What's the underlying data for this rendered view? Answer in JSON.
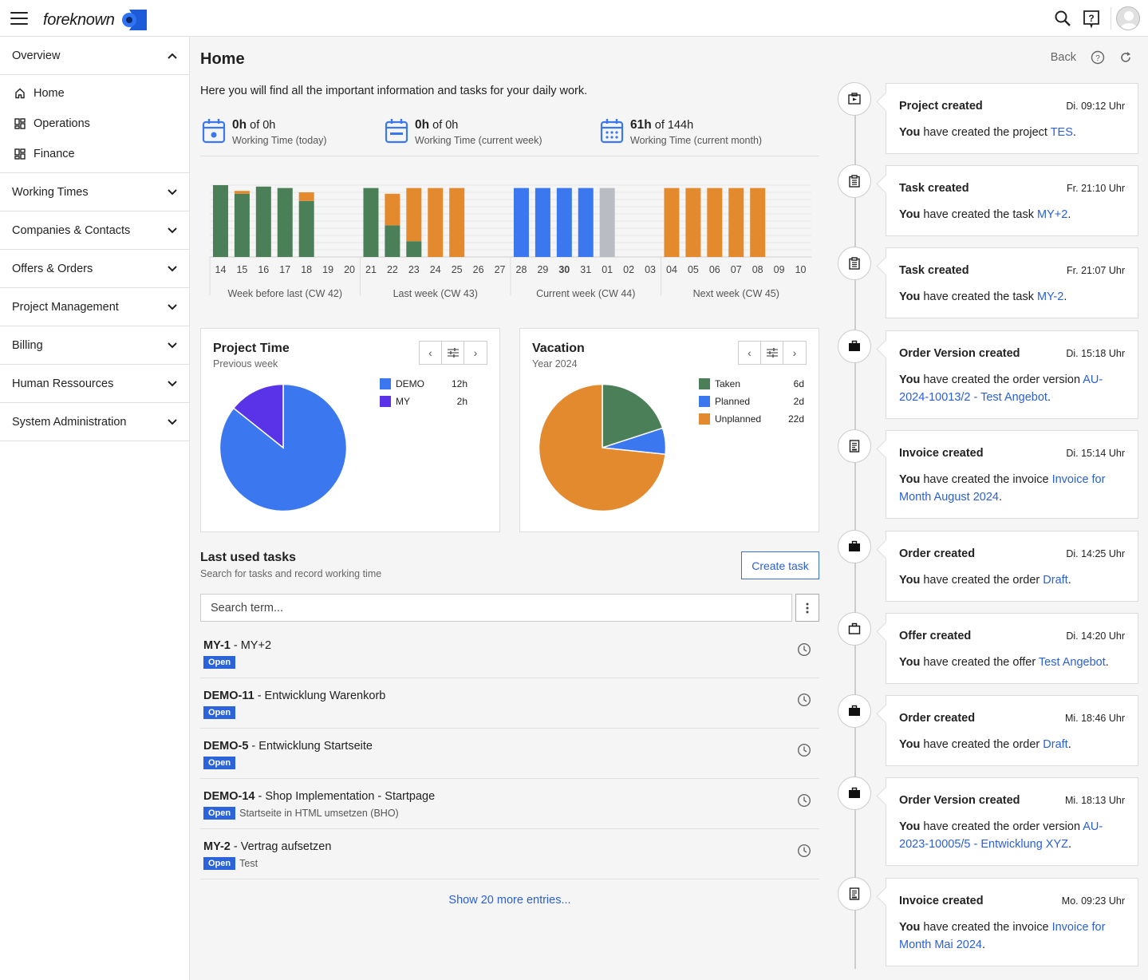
{
  "app": {
    "logo_text": "foreknown"
  },
  "sidebar": {
    "overview": "Overview",
    "sub": [
      "Home",
      "Operations",
      "Finance"
    ],
    "sections": [
      "Working Times",
      "Companies & Contacts",
      "Offers & Orders",
      "Project Management",
      "Billing",
      "Human Ressources",
      "System Administration"
    ]
  },
  "page": {
    "title": "Home",
    "back": "Back",
    "intro": "Here you will find all the important information and tasks for your daily work."
  },
  "stats": [
    {
      "value": "0h",
      "of": "of 0h",
      "label": "Working Time (today)"
    },
    {
      "value": "0h",
      "of": "of 0h",
      "label": "Working Time (current week)"
    },
    {
      "value": "61h",
      "of": "of 144h",
      "label": "Working Time (current month)"
    }
  ],
  "week_chart": {
    "days": [
      "14",
      "15",
      "16",
      "17",
      "18",
      "19",
      "20",
      "21",
      "22",
      "23",
      "24",
      "25",
      "26",
      "27",
      "28",
      "29",
      "30",
      "31",
      "01",
      "02",
      "03",
      "04",
      "05",
      "06",
      "07",
      "08",
      "09",
      "10"
    ],
    "bold_day": "30",
    "weeks": [
      "Week before last (CW 42)",
      "Last week (CW 43)",
      "Current week (CW 44)",
      "Next week (CW 45)"
    ],
    "colors": {
      "worked": "#4a7f57",
      "overtime": "#e38a2f",
      "planned": "#3b78f0",
      "holiday": "#b9bcc2"
    },
    "bars": [
      {
        "worked": 1.0
      },
      {
        "worked": 0.88,
        "overtime": 0.04
      },
      {
        "worked": 0.98
      },
      {
        "worked": 0.96
      },
      {
        "worked": 0.78,
        "overtime": 0.12
      },
      {},
      {},
      {
        "worked": 0.96
      },
      {
        "worked": 0.44,
        "overtime": 0.44
      },
      {
        "worked": 0.22,
        "overtime": 0.74
      },
      {
        "overtime": 0.96
      },
      {
        "overtime": 0.96
      },
      {},
      {},
      {
        "planned": 0.96
      },
      {
        "planned": 0.96
      },
      {
        "planned": 0.96
      },
      {
        "planned": 0.96
      },
      {
        "holiday": 0.96
      },
      {},
      {},
      {
        "overtime": 0.96
      },
      {
        "overtime": 0.96
      },
      {
        "overtime": 0.96
      },
      {
        "overtime": 0.96
      },
      {
        "overtime": 0.96
      },
      {},
      {}
    ]
  },
  "project_time": {
    "title": "Project Time",
    "subtitle": "Previous week",
    "legend": [
      {
        "name": "DEMO",
        "value": "12h",
        "color": "#3b78f0"
      },
      {
        "name": "MY",
        "value": "2h",
        "color": "#5a32e8"
      }
    ]
  },
  "vacation": {
    "title": "Vacation",
    "subtitle": "Year 2024",
    "legend": [
      {
        "name": "Taken",
        "value": "6d",
        "color": "#4a7f57"
      },
      {
        "name": "Planned",
        "value": "2d",
        "color": "#3b78f0"
      },
      {
        "name": "Unplanned",
        "value": "22d",
        "color": "#e38a2f"
      }
    ]
  },
  "chart_data": [
    {
      "type": "pie",
      "title": "Project Time",
      "labels": [
        "DEMO",
        "MY"
      ],
      "values": [
        12,
        2
      ]
    },
    {
      "type": "pie",
      "title": "Vacation",
      "labels": [
        "Taken",
        "Planned",
        "Unplanned"
      ],
      "values": [
        6,
        2,
        22
      ]
    }
  ],
  "tasks": {
    "title": "Last used tasks",
    "subtitle": "Search for tasks and record working time",
    "create": "Create task",
    "search_placeholder": "Search term...",
    "items": [
      {
        "key": "MY-1",
        "name": " - MY+2",
        "badge": "Open",
        "desc": ""
      },
      {
        "key": "DEMO-11",
        "name": " - Entwicklung Warenkorb",
        "badge": "Open",
        "desc": ""
      },
      {
        "key": "DEMO-5",
        "name": " - Entwicklung Startseite",
        "badge": "Open",
        "desc": ""
      },
      {
        "key": "DEMO-14",
        "name": " - Shop Implementation - Startpage",
        "badge": "Open",
        "desc": "Startseite in HTML umsetzen (BHO)"
      },
      {
        "key": "MY-2",
        "name": " - Vertrag aufsetzen",
        "badge": "Open",
        "desc": "Test"
      }
    ],
    "more": "Show 20 more entries..."
  },
  "timeline": [
    {
      "icon": "project-icon",
      "title": "Project created",
      "time": "Di. 09:12 Uhr",
      "you": "You",
      "text": " have created the project ",
      "link": "TES"
    },
    {
      "icon": "task-icon",
      "title": "Task created",
      "time": "Fr. 21:10 Uhr",
      "you": "You",
      "text": " have created the task ",
      "link": "MY+2"
    },
    {
      "icon": "task-icon",
      "title": "Task created",
      "time": "Fr. 21:07 Uhr",
      "you": "You",
      "text": " have created the task ",
      "link": "MY-2"
    },
    {
      "icon": "briefcase-icon",
      "title": "Order Version created",
      "time": "Di. 15:18 Uhr",
      "you": "You",
      "text": " have created the order version ",
      "link": "AU-2024-10013/2 - Test Angebot"
    },
    {
      "icon": "invoice-icon",
      "title": "Invoice created",
      "time": "Di. 15:14 Uhr",
      "you": "You",
      "text": " have created the invoice ",
      "link": "Invoice for Month August 2024"
    },
    {
      "icon": "briefcase-icon",
      "title": "Order created",
      "time": "Di. 14:25 Uhr",
      "you": "You",
      "text": " have created the order ",
      "link": "Draft"
    },
    {
      "icon": "briefcase-outline-icon",
      "title": "Offer created",
      "time": "Di. 14:20 Uhr",
      "you": "You",
      "text": " have created the offer ",
      "link": "Test Angebot"
    },
    {
      "icon": "briefcase-icon",
      "title": "Order created",
      "time": "Mi. 18:46 Uhr",
      "you": "You",
      "text": " have created the order ",
      "link": "Draft"
    },
    {
      "icon": "briefcase-icon",
      "title": "Order Version created",
      "time": "Mi. 18:13 Uhr",
      "you": "You",
      "text": " have created the order version ",
      "link": "AU-2023-10005/5 - Entwicklung XYZ"
    },
    {
      "icon": "invoice-icon",
      "title": "Invoice created",
      "time": "Mo. 09:23 Uhr",
      "you": "You",
      "text": " have created the invoice ",
      "link": "Invoice for Month Mai 2024"
    }
  ]
}
